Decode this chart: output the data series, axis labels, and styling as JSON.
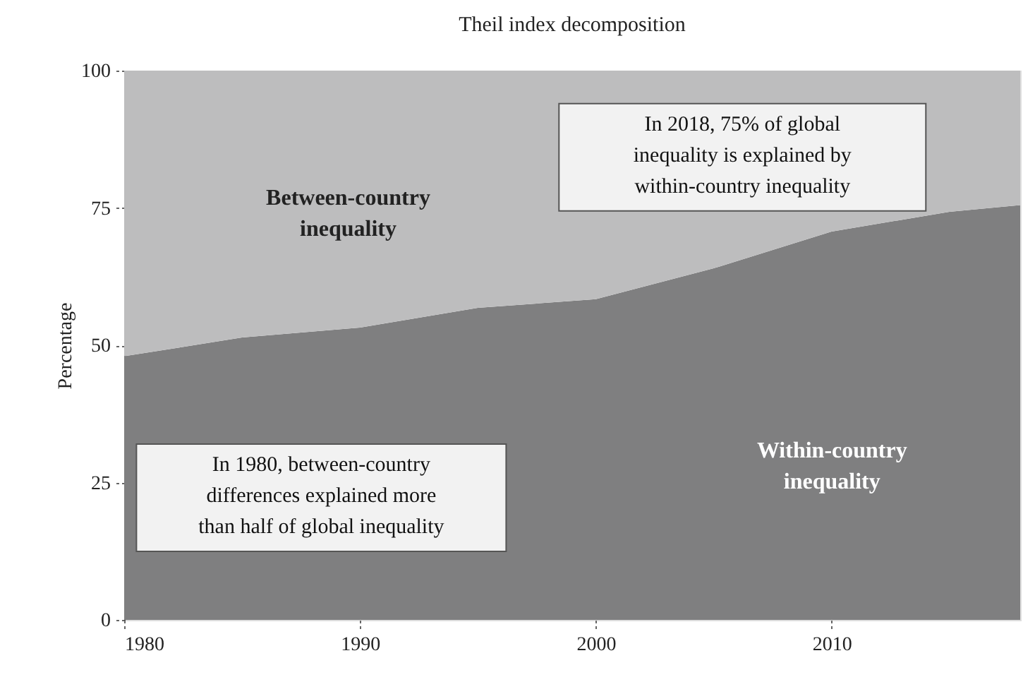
{
  "chart_data": {
    "type": "area",
    "stacked": true,
    "title": "Theil index decomposition",
    "ylabel": "Percentage",
    "x": [
      1980,
      1985,
      1990,
      1995,
      2000,
      2005,
      2010,
      2015,
      2018
    ],
    "series": [
      {
        "name": "Within-country inequality",
        "color": "#7f7f80",
        "values": [
          48,
          51.4,
          53.2,
          56.8,
          58.4,
          64,
          70.7,
          74.3,
          75.5
        ]
      },
      {
        "name": "Between-country inequality",
        "color": "#bdbdbe",
        "values": [
          52,
          48.6,
          46.8,
          43.2,
          41.6,
          36,
          29.3,
          25.7,
          24.5
        ]
      }
    ],
    "xlim": [
      1980,
      2018
    ],
    "xticks": [
      1980,
      1990,
      2000,
      2010
    ],
    "ylim": [
      0,
      100
    ],
    "yticks": [
      0,
      25,
      50,
      75,
      100
    ],
    "grid": false,
    "legend": false,
    "annotations": [
      "In 2018, 75% of global inequality is explained by within-country inequality",
      "In 1980, between-country differences explained more than half of global inequality"
    ]
  }
}
